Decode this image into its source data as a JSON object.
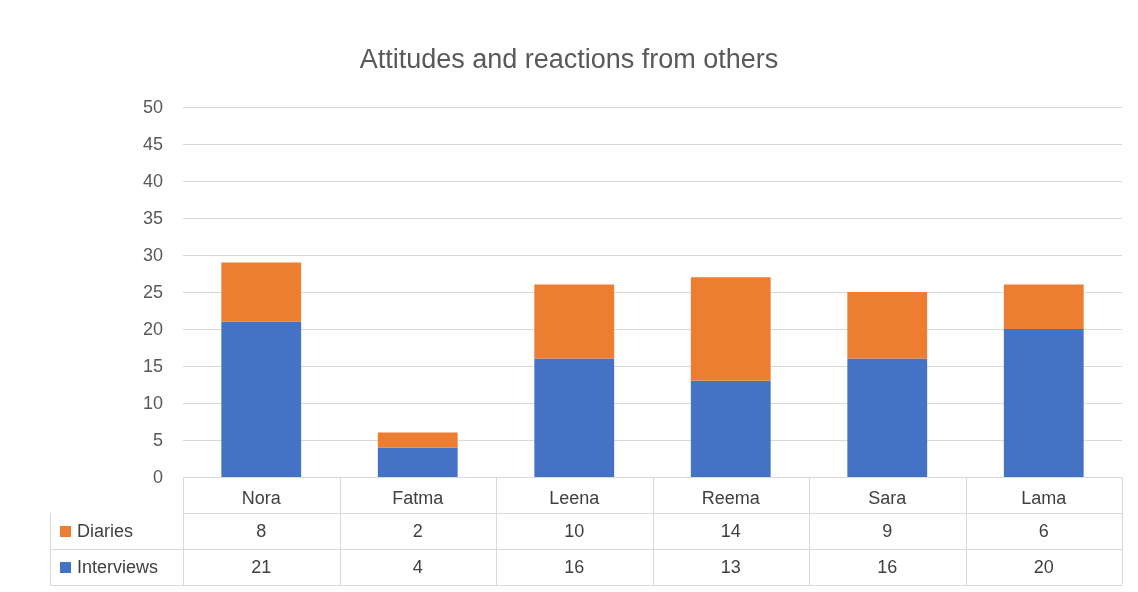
{
  "chart_data": {
    "type": "bar",
    "title": "Attitudes and reactions from others",
    "categories": [
      "Nora",
      "Fatma",
      "Leena",
      "Reema",
      "Sara",
      "Lama"
    ],
    "stacked": true,
    "series": [
      {
        "name": "Interviews",
        "color": "#4472c4",
        "values": [
          21,
          4,
          16,
          13,
          16,
          20
        ]
      },
      {
        "name": "Diaries",
        "color": "#ed7d31",
        "values": [
          8,
          2,
          10,
          14,
          9,
          6
        ]
      }
    ],
    "ylim": [
      0,
      50
    ],
    "yticks": [
      0,
      5,
      10,
      15,
      20,
      25,
      30,
      35,
      40,
      45,
      50
    ],
    "grid": "y",
    "legend": "bottom",
    "data_labels": true
  }
}
